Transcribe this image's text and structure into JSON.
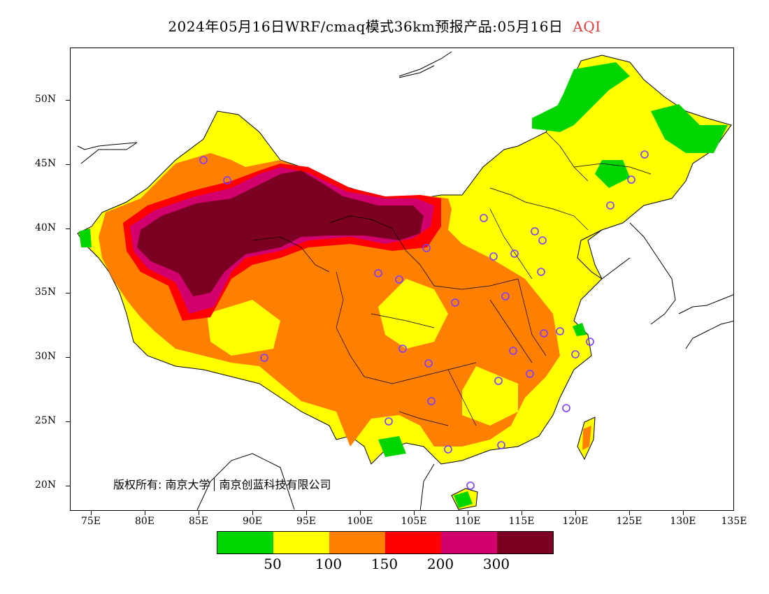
{
  "title": {
    "main": "2024年05月16日WRF/cmaq模式36km预报产品:05月16日",
    "variable": "AQI"
  },
  "axes": {
    "lat": [
      {
        "label": "50N",
        "lat": 50
      },
      {
        "label": "45N",
        "lat": 45
      },
      {
        "label": "40N",
        "lat": 40
      },
      {
        "label": "35N",
        "lat": 35
      },
      {
        "label": "30N",
        "lat": 30
      },
      {
        "label": "25N",
        "lat": 25
      },
      {
        "label": "20N",
        "lat": 20
      }
    ],
    "lon": [
      {
        "label": "75E",
        "lon": 75
      },
      {
        "label": "80E",
        "lon": 80
      },
      {
        "label": "85E",
        "lon": 85
      },
      {
        "label": "90E",
        "lon": 90
      },
      {
        "label": "95E",
        "lon": 95
      },
      {
        "label": "100E",
        "lon": 100
      },
      {
        "label": "105E",
        "lon": 105
      },
      {
        "label": "110E",
        "lon": 110
      },
      {
        "label": "115E",
        "lon": 115
      },
      {
        "label": "120E",
        "lon": 120
      },
      {
        "label": "125E",
        "lon": 125
      },
      {
        "label": "130E",
        "lon": 130
      },
      {
        "label": "135E",
        "lon": 135
      }
    ]
  },
  "legend": {
    "colors": [
      "#00d500",
      "#ffff00",
      "#ff7f00",
      "#ff0000",
      "#d2006e",
      "#7c0022"
    ],
    "labels": [
      "50",
      "100",
      "150",
      "200",
      "300"
    ]
  },
  "copyright": {
    "left": "版权所有: 南京大学",
    "right": "南京创蓝科技有限公司"
  }
}
